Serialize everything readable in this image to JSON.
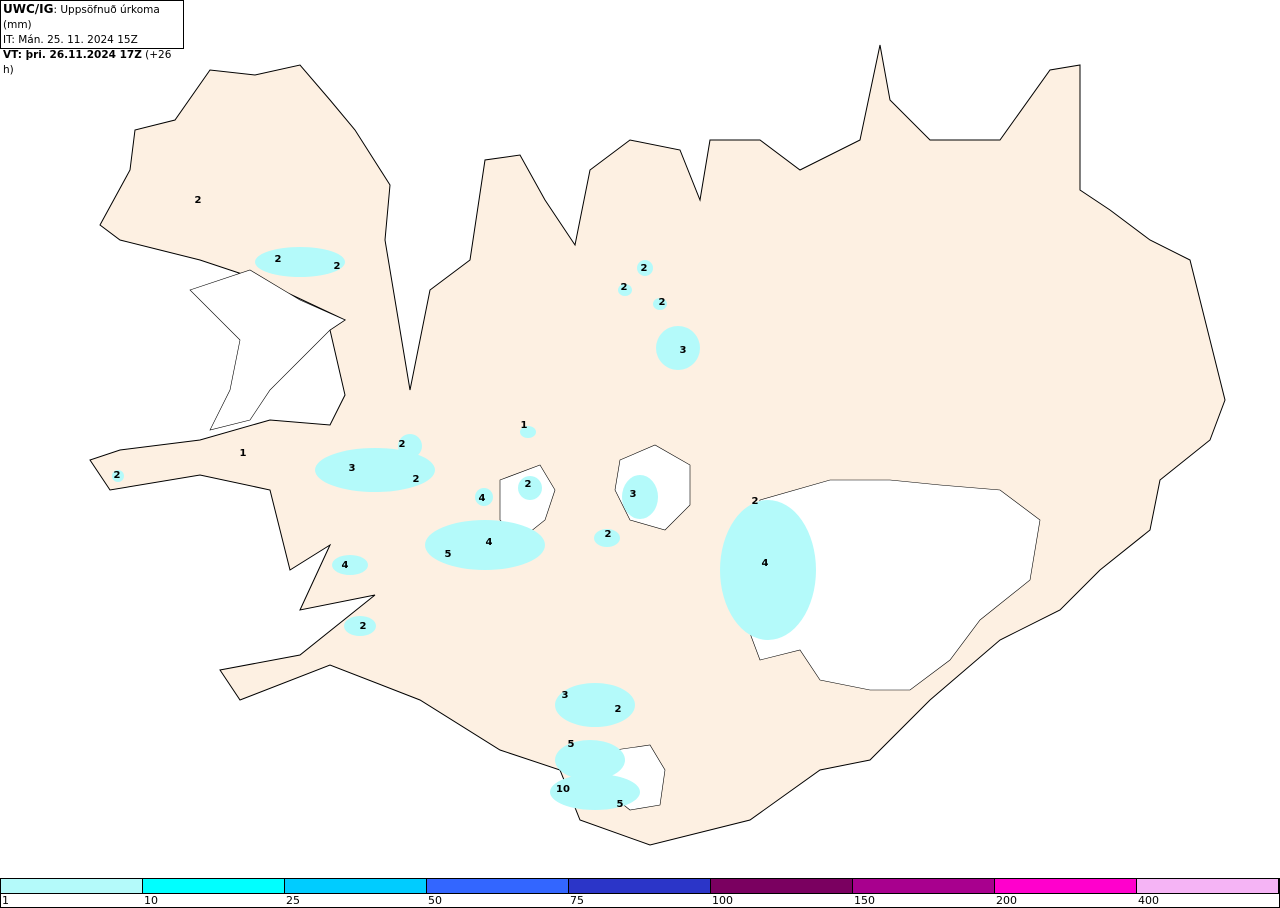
{
  "header": {
    "model": "UWC/IG",
    "product": "Uppsöfnuð úrkoma (mm)",
    "it_label": "IT:",
    "it_value": "Mán. 25. 11. 2024 15Z",
    "vt_label": "VT: þri. 26.11.2024 17Z",
    "vt_offset": "(+26 h)"
  },
  "map": {
    "land_color": "#fdf0e2",
    "glacier_color": "#ffffff",
    "labels": [
      "2",
      "2",
      "2",
      "2",
      "2",
      "2",
      "3",
      "1",
      "1",
      "2",
      "3",
      "2",
      "2",
      "4",
      "2",
      "3",
      "4",
      "5",
      "2",
      "2",
      "4",
      "4",
      "2",
      "3",
      "2",
      "5",
      "10",
      "5"
    ]
  },
  "legend": {
    "colors": [
      "#b4fafa",
      "#00ffff",
      "#00ccff",
      "#3366ff",
      "#2b35c8",
      "#7a0060",
      "#a8008e",
      "#ff00cc",
      "#f5b4f5"
    ],
    "ticks": [
      "1",
      "10",
      "25",
      "50",
      "75",
      "100",
      "150",
      "200",
      "400"
    ]
  }
}
